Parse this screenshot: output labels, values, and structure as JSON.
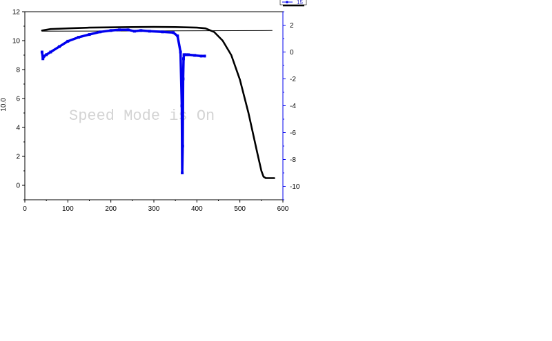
{
  "chart_data": {
    "type": "line",
    "title": "",
    "xlabel": "",
    "ylabel_left_fragment": "10.0",
    "watermark": "Speed Mode is On",
    "xlim": [
      0,
      600
    ],
    "ylim_left": [
      -1,
      12
    ],
    "ylim_right": [
      -11,
      3
    ],
    "x_ticks": [
      "0",
      "100",
      "200",
      "300",
      "400",
      "500",
      "600"
    ],
    "y_left_ticks": [
      "0",
      "2",
      "4",
      "6",
      "8",
      "10",
      "12"
    ],
    "y_right_ticks": [
      "-10",
      "-8",
      "-6",
      "-4",
      "-2",
      "0",
      "2"
    ],
    "legend": [
      {
        "label": "15",
        "color": "#0000ee"
      }
    ],
    "series": [
      {
        "axis": "left",
        "color": "#000000",
        "x": [
          40,
          60,
          100,
          150,
          200,
          250,
          300,
          350,
          400,
          420,
          440,
          460,
          480,
          500,
          520,
          540,
          550,
          555,
          560,
          570,
          580
        ],
        "y": [
          10.7,
          10.8,
          10.85,
          10.9,
          10.92,
          10.94,
          10.95,
          10.94,
          10.9,
          10.85,
          10.6,
          10.0,
          9.0,
          7.3,
          5.0,
          2.3,
          1.0,
          0.6,
          0.5,
          0.5,
          0.5
        ]
      },
      {
        "axis": "left",
        "color": "#000000",
        "x": [
          40,
          575
        ],
        "y": [
          10.65,
          10.7
        ]
      },
      {
        "axis": "right",
        "color": "#0000ee",
        "x": [
          40,
          42,
          45,
          50,
          60,
          80,
          100,
          125,
          150,
          175,
          200,
          220,
          240,
          255,
          270,
          290,
          320,
          345,
          355,
          362,
          365,
          366,
          367,
          368,
          369,
          370,
          372,
          375,
          380,
          395,
          410,
          418
        ],
        "y": [
          0.0,
          -0.5,
          -0.3,
          -0.2,
          0.0,
          0.4,
          0.8,
          1.1,
          1.3,
          1.5,
          1.6,
          1.65,
          1.65,
          1.55,
          1.6,
          1.55,
          1.5,
          1.45,
          1.2,
          0.0,
          -4.0,
          -9.0,
          -7.0,
          -2.0,
          -0.5,
          -0.2,
          -0.2,
          -0.2,
          -0.2,
          -0.25,
          -0.3,
          -0.3
        ]
      }
    ]
  }
}
